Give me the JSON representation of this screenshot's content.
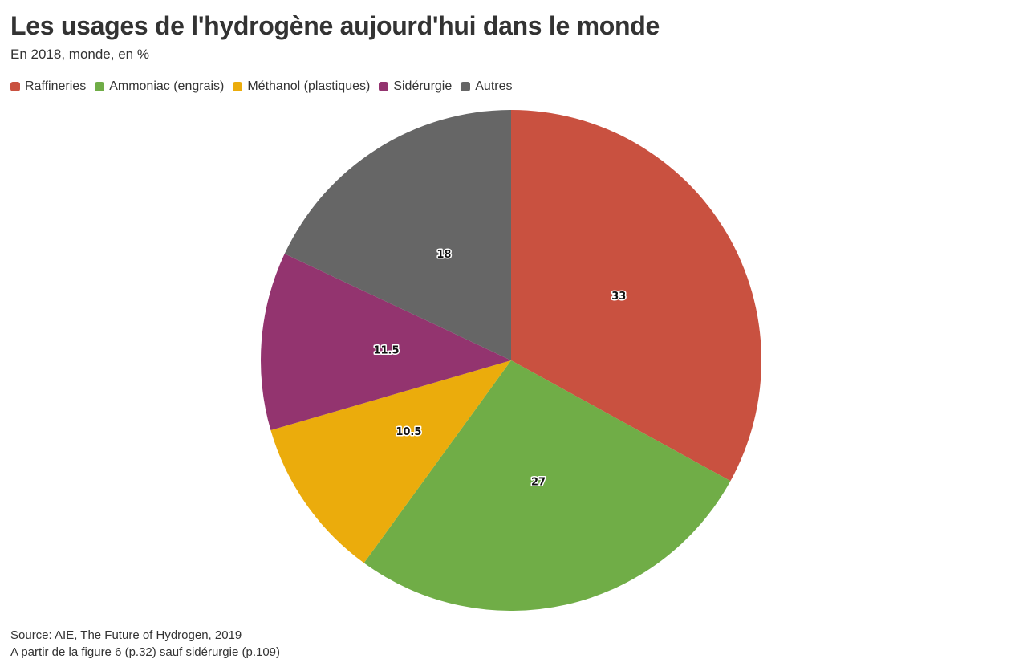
{
  "chart_data": {
    "type": "pie",
    "title": "Les usages de l'hydrogène aujourd'hui dans le monde",
    "subtitle": "En 2018, monde, en %",
    "categories": [
      "Raffineries",
      "Ammoniac (engrais)",
      "Méthanol (plastiques)",
      "Sidérurgie",
      "Autres"
    ],
    "values": [
      33,
      27,
      10.5,
      11.5,
      18
    ],
    "data_labels": [
      "33",
      "27",
      "10.5",
      "11.5",
      "18"
    ],
    "colors": [
      "#c95140",
      "#70ad47",
      "#ebac0c",
      "#93346f",
      "#666666"
    ],
    "legend_position": "top-left"
  },
  "footer": {
    "source_prefix": "Source: ",
    "source_link": "AIE, The Future of Hydrogen, 2019",
    "note": "A partir de la figure 6 (p.32) sauf sidérurgie (p.109)"
  }
}
